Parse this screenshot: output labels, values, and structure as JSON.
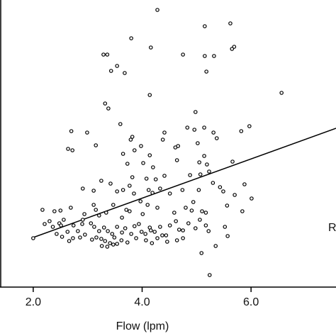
{
  "chart_data": {
    "type": "scatter",
    "xlabel": "Flow (lpm)",
    "annotation": "R",
    "xlim": [
      1.39,
      7.56
    ],
    "ylim": [
      0,
      40.5
    ],
    "xticks": [
      {
        "value": 2,
        "label": "2.0"
      },
      {
        "value": 4,
        "label": "4.0"
      },
      {
        "value": 6,
        "label": "6.0"
      }
    ],
    "color": "#000000",
    "x": [
      4.28,
      3.8,
      5.15,
      5.62,
      3.29,
      3.36,
      4.16,
      4.75,
      5.15,
      5.32,
      5.69,
      5.65,
      3.43,
      3.54,
      3.68,
      5.18,
      4.14,
      6.56,
      3.32,
      3.38,
      4.98,
      2.7,
      2.99,
      3.15,
      3.6,
      3.82,
      3.79,
      4.41,
      4.83,
      4.96,
      5.14,
      5.31,
      5.97,
      5.82,
      2.64,
      2.72,
      3.65,
      3.86,
      3.98,
      4.38,
      4.61,
      4.66,
      5.02,
      5.37,
      3.73,
      4.02,
      4.14,
      4.2,
      4.41,
      4.64,
      5.05,
      5.14,
      5.19,
      5.23,
      5.66,
      3.25,
      3.42,
      3.82,
      3.77,
      4.08,
      4.25,
      4.88,
      5.07,
      5.3,
      5.43,
      5.88,
      2.91,
      3.11,
      3.54,
      3.65,
      3.85,
      4.12,
      4.19,
      4.33,
      4.51,
      4.74,
      5.04,
      5.49,
      5.7,
      6.01,
      2.17,
      2.39,
      2.5,
      2.69,
      2.94,
      3.11,
      3.15,
      3.34,
      3.47,
      3.71,
      3.77,
      3.97,
      4.1,
      4.28,
      4.8,
      4.94,
      5.1,
      5.17,
      5.56,
      5.84,
      2.21,
      2.3,
      2.36,
      2.48,
      2.56,
      2.74,
      2.82,
      3.06,
      3.12,
      3.21,
      3.3,
      3.37,
      3.45,
      3.49,
      3.54,
      3.63,
      3.69,
      3.8,
      3.86,
      3.94,
      3.99,
      4.06,
      4.14,
      4.23,
      4.33,
      4.44,
      4.51,
      4.62,
      4.75,
      4.85,
      4.98,
      5.06,
      5.17,
      5.22,
      2.43,
      2.53,
      2.63,
      2.73,
      2.86,
      2.95,
      3.08,
      3.16,
      3.25,
      3.32,
      3.41,
      3.47,
      3.62,
      3.73,
      3.89,
      4.07,
      4.18,
      4.28,
      4.46,
      4.64,
      4.75,
      2.0,
      2.51,
      5.52,
      5.57,
      5.35,
      5.09,
      5.24,
      4.68,
      2.9,
      3.26,
      3.36,
      3.54,
      4.16,
      4.37,
      4.91,
      4.59,
      4.01,
      3.63,
      3.21,
      2.91,
      2.66
    ],
    "y": [
      39.1,
      35.1,
      36.8,
      37.2,
      32.8,
      32.8,
      33.8,
      32.8,
      32.6,
      32.6,
      33.9,
      33.6,
      30.5,
      31.2,
      30.2,
      30.4,
      27.1,
      27.4,
      25.9,
      25.2,
      24.7,
      22.0,
      21.8,
      20.0,
      23.0,
      21.2,
      20.8,
      21.8,
      22.5,
      22.2,
      22.5,
      21.8,
      22.7,
      22.0,
      19.5,
      19.3,
      18.8,
      19.3,
      19.9,
      20.8,
      19.7,
      19.9,
      20.3,
      21.0,
      17.4,
      17.5,
      18.6,
      16.9,
      15.7,
      17.9,
      17.6,
      18.5,
      17.3,
      16.3,
      17.7,
      15.0,
      14.6,
      15.5,
      14.3,
      15.3,
      15.2,
      15.8,
      15.9,
      14.7,
      14.1,
      14.5,
      13.9,
      13.6,
      13.5,
      13.7,
      13.2,
      13.7,
      13.3,
      13.9,
      13.2,
      13.7,
      13.7,
      13.5,
      13.0,
      12.5,
      10.9,
      10.7,
      10.8,
      11.2,
      10.3,
      11.6,
      10.9,
      10.5,
      11.6,
      10.9,
      10.7,
      12.1,
      11.6,
      11.2,
      11.2,
      12.0,
      10.7,
      10.5,
      11.5,
      10.7,
      8.9,
      9.3,
      8.5,
      9.0,
      9.5,
      8.7,
      7.9,
      9.0,
      8.5,
      7.9,
      8.4,
      7.9,
      7.5,
      7.0,
      8.5,
      7.7,
      8.3,
      7.5,
      8.6,
      8.9,
      7.8,
      7.5,
      8.4,
      7.8,
      8.5,
      7.3,
      8.7,
      9.3,
      8.0,
      9.0,
      8.3,
      9.5,
      8.7,
      7.9,
      7.5,
      7.1,
      7.8,
      6.9,
      7.0,
      7.4,
      6.7,
      7.0,
      6.8,
      6.5,
      6.2,
      6.0,
      6.6,
      6.3,
      6.9,
      6.6,
      6.2,
      6.9,
      6.4,
      6.6,
      6.9,
      6.9,
      8.7,
      8.5,
      7.2,
      5.8,
      4.8,
      1.7,
      8.1,
      8.9,
      5.8,
      5.7,
      6.1,
      8.0,
      7.3,
      10.8,
      10.5,
      10.3,
      9.8,
      10.1,
      9.5,
      6.5
    ],
    "fit_line": {
      "x": [
        2.0,
        7.56
      ],
      "y": [
        7.0,
        22.4
      ]
    }
  }
}
